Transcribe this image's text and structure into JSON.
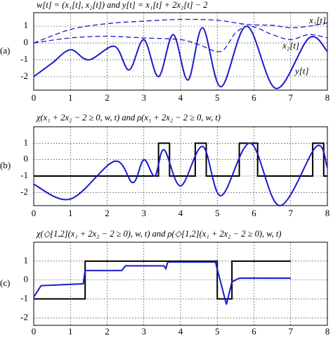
{
  "chart_data": [
    {
      "type": "line",
      "panel_label": "(a)",
      "title": "w[t] = (x₁[t], x₂[t]) and y[t] = x₁[t] + 2x₂[t] − 2",
      "xlim": [
        0,
        8
      ],
      "xticks": [
        0,
        1,
        2,
        3,
        4,
        5,
        6,
        7,
        8
      ],
      "ylim": [
        -2.8,
        1.8
      ],
      "yticks": [
        -2,
        -1,
        0,
        1
      ],
      "grid": true,
      "series": [
        {
          "name": "x₁[t]",
          "color": "#1a1acc",
          "dash": true,
          "smooth": true,
          "x": [
            0,
            1,
            2,
            3,
            4,
            5,
            5.8,
            6.5,
            7,
            7.5,
            8
          ],
          "values": [
            0,
            0.8,
            1.15,
            1.3,
            1.4,
            1.35,
            1.1,
            1.05,
            0.9,
            1.0,
            1.2
          ]
        },
        {
          "name": "x₂[t]",
          "color": "#1a1acc",
          "dash": true,
          "smooth": true,
          "x": [
            0,
            1,
            2,
            3,
            4,
            4.5,
            5.1,
            5.5,
            5.9,
            6.5,
            7,
            7.5,
            8
          ],
          "values": [
            0,
            0.3,
            0.4,
            0.3,
            0.2,
            -0.1,
            -0.5,
            0.6,
            1.0,
            0.5,
            0.2,
            0.5,
            0.3
          ]
        },
        {
          "name": "y[t]",
          "color": "#1a1acc",
          "dash": false,
          "smooth": true,
          "x": [
            0,
            0.5,
            1,
            1.5,
            2.2,
            2.6,
            3.0,
            3.4,
            3.8,
            4.2,
            4.6,
            5.1,
            5.8,
            6.6,
            7.5,
            8
          ],
          "values": [
            -2,
            -1.2,
            -0.4,
            -1.0,
            -0.2,
            -1.6,
            0.2,
            -2.0,
            0.5,
            -2.2,
            0.9,
            -2.6,
            1.0,
            -2.7,
            0.3,
            -0.5
          ]
        }
      ]
    },
    {
      "type": "line",
      "panel_label": "(b)",
      "title": "χ(x₁ + 2x₂ − 2 ≥ 0, w, t) and ρ(x₁ + 2x₂ − 2 ≥ 0, w, t)",
      "xlim": [
        0,
        8
      ],
      "xticks": [
        0,
        1,
        2,
        3,
        4,
        5,
        6,
        7,
        8
      ],
      "ylim": [
        -2.8,
        2
      ],
      "yticks": [
        -2,
        -1,
        0,
        1
      ],
      "grid": true,
      "series": [
        {
          "color": "#000000",
          "dash": false,
          "smooth": false,
          "x": [
            0,
            3.4,
            3.4,
            3.7,
            3.7,
            4.4,
            4.4,
            4.7,
            4.7,
            5.6,
            5.6,
            6.1,
            6.1,
            7.6,
            7.6,
            7.9,
            7.9,
            8
          ],
          "values": [
            -1,
            -1,
            1,
            1,
            -1,
            -1,
            1,
            1,
            -1,
            -1,
            1,
            1,
            -1,
            -1,
            1,
            1,
            -1,
            -1
          ]
        },
        {
          "color": "#1a1acc",
          "dash": false,
          "smooth": true,
          "x": [
            0,
            1,
            2.2,
            2.7,
            3.0,
            3.3,
            3.55,
            4.0,
            4.6,
            5.1,
            5.9,
            6.7,
            7.7,
            8
          ],
          "values": [
            -1.5,
            -2.4,
            -0.1,
            -1.4,
            0,
            -1.0,
            0.6,
            -1.6,
            0.8,
            -2.2,
            1.0,
            -2.8,
            0.8,
            -0.5
          ]
        }
      ]
    },
    {
      "type": "line",
      "panel_label": "(c)",
      "title": "χ(◇[1,2](x₁ + 2x₂ − 2 ≥ 0), w, t) and ρ(◇[1,2](x₁ + 2x₂ − 2 ≥ 0), w, t)",
      "xlim": [
        0,
        8
      ],
      "xticks": [
        0,
        1,
        2,
        3,
        4,
        5,
        6,
        7,
        8
      ],
      "ylim": [
        -2.4,
        2
      ],
      "yticks": [
        -2,
        -1,
        0,
        1
      ],
      "grid": true,
      "series": [
        {
          "color": "#000000",
          "dash": false,
          "smooth": false,
          "x": [
            0,
            1.4,
            1.4,
            5.0,
            5.0,
            5.4,
            5.4,
            7
          ],
          "values": [
            -1,
            -1,
            1,
            1,
            -1,
            -1,
            1,
            1
          ]
        },
        {
          "color": "#1a1acc",
          "dash": false,
          "smooth": false,
          "x": [
            0,
            0.2,
            1.35,
            1.4,
            2.4,
            2.5,
            3.55,
            3.6,
            3.65,
            4.95,
            5.25,
            5.4,
            5.6,
            7
          ],
          "values": [
            -0.9,
            -0.3,
            -0.2,
            0.5,
            0.5,
            0.75,
            0.75,
            0.6,
            0.95,
            0.95,
            -1.3,
            -0.1,
            0.1,
            0.1
          ]
        }
      ]
    }
  ]
}
